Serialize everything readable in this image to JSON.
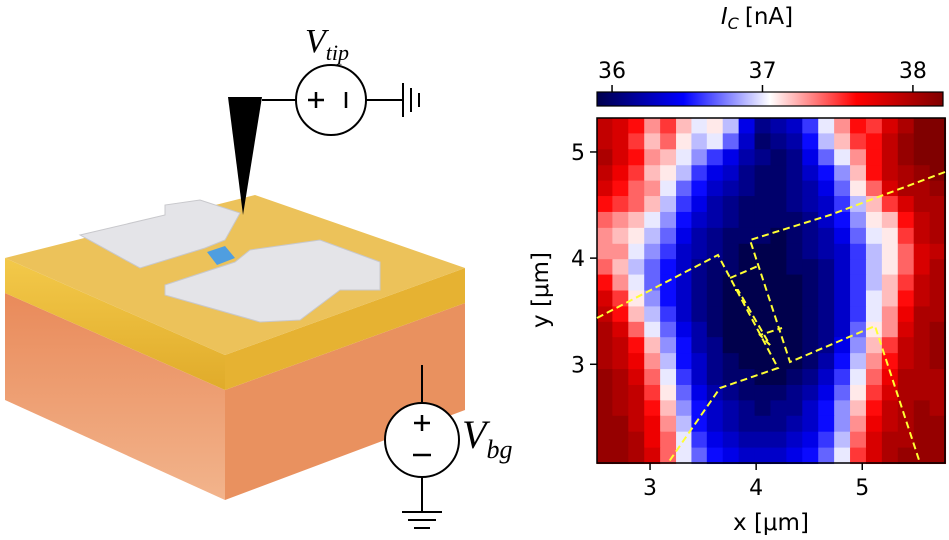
{
  "schematic": {
    "tip_label": {
      "symbol": "V",
      "subscript": "tip"
    },
    "gate_label": {
      "symbol": "V",
      "subscript": "bg"
    }
  },
  "chart_data": {
    "type": "heatmap",
    "colorbar_label": {
      "symbol": "I",
      "subscript": "C",
      "unit": "[nA]"
    },
    "xlabel": "x [μm]",
    "ylabel": "y [μm]",
    "xlim": [
      2.5,
      5.78
    ],
    "ylim": [
      2.07,
      5.32
    ],
    "xticks": [
      3,
      4,
      5
    ],
    "yticks": [
      3,
      4,
      5
    ],
    "colormap": "seismic",
    "clim": [
      35.9,
      38.2
    ],
    "cticks": [
      36,
      37,
      38
    ],
    "x": [
      2.57,
      2.72,
      2.87,
      3.02,
      3.17,
      3.32,
      3.46,
      3.61,
      3.76,
      3.91,
      4.06,
      4.21,
      4.36,
      4.51,
      4.66,
      4.81,
      4.96,
      5.11,
      5.26,
      5.41,
      5.56,
      5.71
    ],
    "y": [
      5.25,
      5.1,
      4.95,
      4.8,
      4.66,
      4.51,
      4.36,
      4.21,
      4.06,
      3.92,
      3.77,
      3.62,
      3.47,
      3.33,
      3.18,
      3.03,
      2.88,
      2.73,
      2.59,
      2.44,
      2.29,
      2.14
    ],
    "z": [
      [
        37.9,
        37.8,
        37.6,
        37.3,
        37.5,
        37.2,
        37.0,
        37.1,
        36.9,
        36.4,
        36.1,
        36.2,
        36.3,
        36.6,
        37.0,
        37.3,
        37.6,
        37.5,
        37.8,
        38.0,
        38.2,
        38.2
      ],
      [
        37.9,
        37.8,
        37.5,
        37.2,
        37.4,
        37.1,
        36.9,
        37.0,
        36.7,
        36.3,
        36.0,
        36.1,
        36.2,
        36.5,
        36.9,
        37.2,
        37.5,
        37.6,
        37.9,
        38.1,
        38.2,
        38.3
      ],
      [
        38.0,
        37.8,
        37.6,
        37.3,
        37.2,
        37.0,
        36.8,
        36.6,
        36.4,
        36.2,
        36.1,
        36.0,
        36.1,
        36.4,
        36.7,
        37.0,
        37.3,
        37.6,
        37.9,
        38.1,
        38.2,
        38.2
      ],
      [
        37.9,
        37.7,
        37.5,
        37.2,
        37.1,
        36.9,
        36.6,
        36.4,
        36.3,
        36.1,
        36.0,
        36.0,
        36.1,
        36.3,
        36.5,
        36.8,
        37.2,
        37.6,
        37.9,
        38.0,
        38.1,
        38.2
      ],
      [
        37.8,
        37.6,
        37.4,
        37.3,
        37.0,
        36.7,
        36.5,
        36.3,
        36.2,
        36.1,
        36.0,
        36.0,
        36.1,
        36.2,
        36.4,
        36.7,
        37.1,
        37.4,
        37.8,
        38.0,
        38.0,
        38.1
      ],
      [
        37.6,
        37.5,
        37.4,
        37.2,
        36.9,
        36.6,
        36.4,
        36.2,
        36.1,
        36.0,
        36.0,
        36.0,
        36.1,
        36.2,
        36.3,
        36.6,
        36.9,
        37.2,
        37.5,
        37.8,
        38.0,
        38.0
      ],
      [
        37.4,
        37.3,
        37.2,
        37.0,
        36.8,
        36.5,
        36.3,
        36.2,
        36.1,
        36.0,
        36.0,
        36.0,
        36.0,
        36.1,
        36.3,
        36.5,
        36.8,
        37.1,
        37.2,
        37.6,
        37.9,
        38.0
      ],
      [
        37.3,
        37.2,
        37.1,
        36.9,
        36.7,
        36.4,
        36.2,
        36.1,
        36.0,
        36.0,
        36.0,
        35.9,
        36.0,
        36.1,
        36.2,
        36.4,
        36.7,
        37.0,
        37.1,
        37.5,
        37.9,
        38.0
      ],
      [
        37.3,
        37.3,
        37.0,
        36.8,
        36.6,
        36.3,
        36.2,
        36.1,
        36.0,
        35.9,
        35.9,
        35.9,
        36.0,
        36.1,
        36.2,
        36.3,
        36.6,
        36.9,
        37.1,
        37.4,
        37.8,
        37.9
      ],
      [
        37.4,
        37.2,
        36.9,
        36.7,
        36.5,
        36.3,
        36.1,
        36.0,
        36.0,
        35.9,
        35.9,
        35.9,
        36.0,
        36.0,
        36.1,
        36.3,
        36.6,
        36.9,
        37.1,
        37.4,
        37.8,
        38.0
      ],
      [
        37.6,
        37.3,
        37.0,
        36.7,
        36.5,
        36.3,
        36.1,
        36.0,
        35.9,
        35.9,
        35.9,
        35.9,
        35.9,
        36.0,
        36.1,
        36.3,
        36.6,
        36.9,
        37.2,
        37.5,
        37.9,
        38.0
      ],
      [
        37.8,
        37.5,
        37.1,
        36.8,
        36.5,
        36.3,
        36.1,
        36.0,
        35.9,
        35.9,
        35.8,
        35.8,
        35.9,
        36.0,
        36.1,
        36.3,
        36.6,
        37.0,
        37.2,
        37.6,
        37.9,
        38.0
      ],
      [
        37.9,
        37.6,
        37.2,
        36.9,
        36.6,
        36.3,
        36.1,
        36.0,
        35.9,
        35.8,
        35.8,
        35.8,
        35.9,
        36.0,
        36.1,
        36.3,
        36.6,
        37.0,
        37.3,
        37.7,
        38.0,
        38.0
      ],
      [
        38.0,
        37.8,
        37.4,
        37.0,
        36.7,
        36.4,
        36.2,
        36.0,
        35.9,
        35.8,
        35.8,
        35.8,
        35.9,
        36.0,
        36.1,
        36.3,
        36.7,
        37.1,
        37.3,
        37.8,
        38.0,
        38.1
      ],
      [
        38.0,
        37.9,
        37.6,
        37.2,
        36.8,
        36.5,
        36.2,
        36.1,
        35.9,
        35.9,
        35.8,
        35.8,
        35.9,
        36.0,
        36.1,
        36.4,
        36.8,
        37.2,
        37.5,
        37.9,
        38.0,
        38.1
      ],
      [
        38.0,
        37.9,
        37.7,
        37.3,
        36.9,
        36.5,
        36.3,
        36.1,
        36.0,
        35.9,
        35.9,
        35.9,
        35.9,
        36.0,
        36.2,
        36.5,
        36.9,
        37.3,
        37.6,
        37.9,
        38.0,
        38.1
      ],
      [
        38.1,
        38.0,
        37.8,
        37.4,
        37.0,
        36.6,
        36.3,
        36.1,
        36.0,
        36.0,
        35.9,
        35.9,
        36.0,
        36.1,
        36.3,
        36.6,
        37.0,
        37.4,
        37.7,
        38.0,
        38.0,
        38.0
      ],
      [
        38.1,
        38.0,
        37.9,
        37.5,
        37.1,
        36.7,
        36.4,
        36.2,
        36.1,
        36.0,
        36.0,
        36.0,
        36.1,
        36.2,
        36.4,
        36.7,
        37.1,
        37.5,
        37.8,
        38.0,
        38.0,
        38.0
      ],
      [
        38.1,
        38.0,
        37.9,
        37.6,
        37.2,
        36.8,
        36.5,
        36.3,
        36.2,
        36.1,
        36.0,
        36.1,
        36.1,
        36.3,
        36.5,
        36.8,
        37.2,
        37.6,
        37.9,
        38.0,
        38.1,
        38.0
      ],
      [
        38.1,
        38.1,
        37.9,
        37.7,
        37.3,
        36.9,
        36.5,
        36.3,
        36.2,
        36.1,
        36.1,
        36.1,
        36.2,
        36.3,
        36.5,
        36.8,
        37.3,
        37.7,
        37.9,
        38.0,
        38.1,
        38.1
      ],
      [
        38.1,
        38.1,
        38.0,
        37.7,
        37.4,
        37.0,
        36.6,
        36.4,
        36.3,
        36.2,
        36.2,
        36.2,
        36.3,
        36.4,
        36.6,
        36.9,
        37.4,
        37.8,
        38.0,
        38.0,
        38.1,
        38.1
      ],
      [
        38.1,
        38.1,
        38.0,
        37.8,
        37.4,
        37.0,
        36.7,
        36.5,
        36.4,
        36.3,
        36.3,
        36.3,
        36.4,
        36.5,
        36.7,
        37.0,
        37.5,
        37.8,
        38.0,
        38.1,
        38.1,
        38.1
      ]
    ]
  }
}
